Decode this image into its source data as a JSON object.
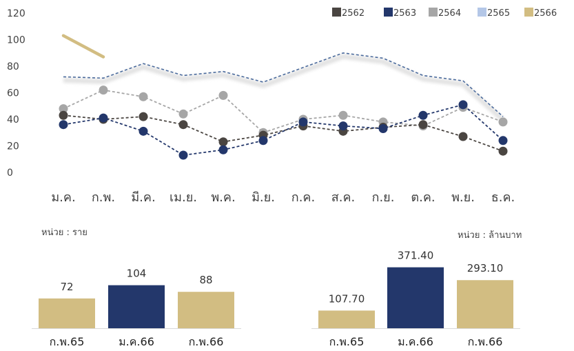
{
  "chart_data": [
    {
      "type": "line",
      "categories": [
        "ม.ค.",
        "ก.พ.",
        "มี.ค.",
        "เม.ย.",
        "พ.ค.",
        "มิ.ย.",
        "ก.ค.",
        "ส.ค.",
        "ก.ย.",
        "ต.ค.",
        "พ.ย.",
        "ธ.ค."
      ],
      "ylim": [
        0,
        120
      ],
      "yticks": [
        "0",
        "20",
        "40",
        "60",
        "80",
        "100",
        "120"
      ],
      "legend_position": "top-right",
      "series": [
        {
          "name": "2562",
          "color": "#4a4541",
          "style": "dashed-markers",
          "values": [
            43,
            40,
            42,
            36,
            23,
            28,
            35,
            31,
            34,
            36,
            27,
            16
          ]
        },
        {
          "name": "2563",
          "color": "#23376b",
          "style": "dashed-markers",
          "values": [
            36,
            41,
            31,
            13,
            17,
            24,
            38,
            35,
            33,
            43,
            51,
            24
          ]
        },
        {
          "name": "2564",
          "color": "#a6a6a6",
          "style": "dashed-markers",
          "values": [
            48,
            62,
            57,
            44,
            58,
            30,
            40,
            43,
            38,
            35,
            49,
            38
          ]
        },
        {
          "name": "2565",
          "color": "#4a6a9c",
          "style": "dashed-shadow",
          "values": [
            72,
            71,
            82,
            73,
            76,
            68,
            79,
            90,
            86,
            73,
            69,
            42
          ]
        },
        {
          "name": "2566",
          "color": "#d2bd82",
          "style": "solid",
          "values": [
            103,
            87,
            null,
            null,
            null,
            null,
            null,
            null,
            null,
            null,
            null,
            null
          ]
        }
      ]
    },
    {
      "type": "bar",
      "unit_label": "หน่วย : ราย",
      "categories": [
        "ก.พ.65",
        "ม.ค.66",
        "ก.พ.66"
      ],
      "values": [
        72,
        104,
        88
      ],
      "value_labels": [
        "72",
        "104",
        "88"
      ],
      "colors": [
        "#d2bd82",
        "#23376b",
        "#d2bd82"
      ]
    },
    {
      "type": "bar",
      "unit_label": "หน่วย : ล้านบาท",
      "categories": [
        "ก.พ.65",
        "ม.ค.66",
        "ก.พ.66"
      ],
      "values": [
        107.7,
        371.4,
        293.1
      ],
      "value_labels": [
        "107.70",
        "371.40",
        "293.10"
      ],
      "colors": [
        "#d2bd82",
        "#23376b",
        "#d2bd82"
      ]
    }
  ],
  "legend_colors": {
    "2562": "#4a4541",
    "2563": "#23376b",
    "2564": "#a6a6a6",
    "2565": "#b4c7e7",
    "2566": "#d2bd82"
  }
}
